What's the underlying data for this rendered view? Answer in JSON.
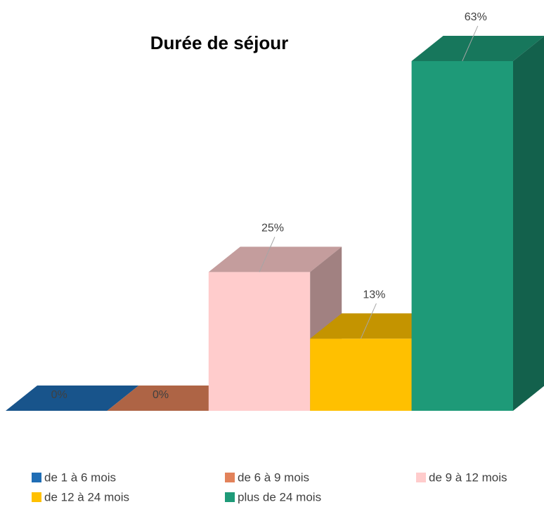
{
  "chart_data": {
    "type": "bar3d",
    "title": "Durée de séjour",
    "series": [
      {
        "name": "de 1 à 6 mois",
        "color": "#1f6db5",
        "values": [
          0
        ],
        "value_labels": [
          "0%"
        ]
      },
      {
        "name": "de 6 à 9 mois",
        "color": "#e2825a",
        "values": [
          0
        ],
        "value_labels": [
          "0%"
        ]
      },
      {
        "name": "de 9 à 12 mois",
        "color": "#ffcccc",
        "values": [
          25
        ],
        "value_labels": [
          "25%"
        ]
      },
      {
        "name": "de 12 à 24 mois",
        "color": "#ffc000",
        "values": [
          13
        ],
        "value_labels": [
          "13%"
        ]
      },
      {
        "name": "plus de 24 mois",
        "color": "#1e9a78",
        "values": [
          63
        ],
        "value_labels": [
          "63%"
        ]
      }
    ]
  }
}
